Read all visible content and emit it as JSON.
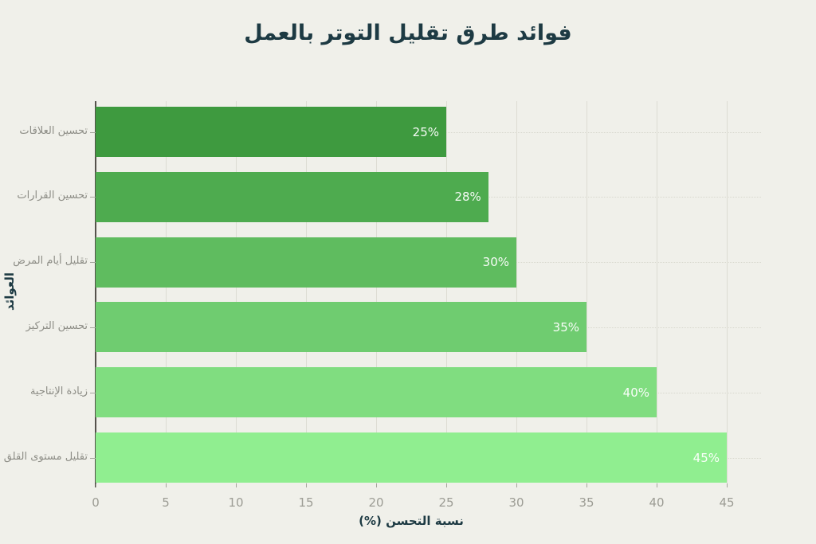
{
  "title": "فوائد طرق تقليل التوتر بالعمل",
  "chart_data": {
    "type": "bar",
    "orientation": "horizontal",
    "title": "فوائد طرق تقليل التوتر بالعمل",
    "categories": [
      "تحسين العلاقات",
      "تحسين القرارات",
      "تقليل أيام المرض",
      "تحسين التركيز",
      "زيادة الإنتاجية",
      "تقليل مستوى القلق"
    ],
    "values": [
      25,
      28,
      30,
      35,
      40,
      45
    ],
    "value_labels": [
      "25%",
      "28%",
      "30%",
      "35%",
      "40%",
      "45%"
    ],
    "bar_colors": [
      "#3E9A3F",
      "#4EAB4F",
      "#5FBC5F",
      "#6FCC70",
      "#80DD80",
      "#90EE90"
    ],
    "xlabel": "نسبة التحسن (%)",
    "ylabel": "العوائد",
    "xlim": [
      0,
      45
    ],
    "xticks": [
      0,
      5,
      10,
      15,
      20,
      25,
      30,
      35,
      40,
      45
    ],
    "grid": true,
    "legend": false,
    "background_color": "#F0F0EA",
    "title_color": "#1D3A43",
    "label_color": "#8D8D86",
    "tick_color": "#9C9C94",
    "value_text_color": "#FFFFFF"
  }
}
